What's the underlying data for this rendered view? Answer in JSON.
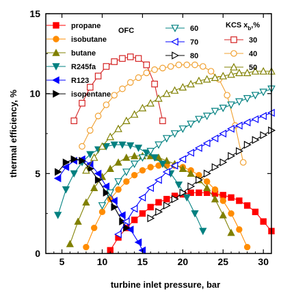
{
  "chart_data": {
    "type": "line",
    "xlabel": "turbine inlet pressure, bar",
    "ylabel": "thermal efficiency, %",
    "xlim": [
      3,
      31
    ],
    "ylim": [
      0,
      15
    ],
    "xticks": [
      5,
      10,
      15,
      20,
      25,
      30
    ],
    "yticks": [
      0,
      5,
      10,
      15
    ],
    "grid": false,
    "annotations": {
      "ofc": "OFC",
      "kcs_prefix": "KCS x",
      "kcs_sub": "b",
      "kcs_suffix": ",%"
    },
    "series": [
      {
        "name": "propane",
        "group": "OFC",
        "color": "#ff0000",
        "marker": "square-filled",
        "x": [
          11.0,
          12.0,
          13.0,
          14.0,
          15.0,
          16.0,
          17.0,
          18.0,
          19.0,
          20.0,
          21.0,
          22.0,
          23.0,
          24.0,
          25.0,
          26.0,
          27.0,
          28.0,
          29.0,
          30.0,
          31.0
        ],
        "y": [
          0.2,
          1.0,
          1.6,
          2.1,
          2.5,
          2.9,
          3.2,
          3.4,
          3.6,
          3.7,
          3.8,
          3.8,
          3.8,
          3.75,
          3.65,
          3.5,
          3.3,
          3.0,
          2.6,
          2.0,
          1.4
        ]
      },
      {
        "name": "isobutane",
        "group": "OFC",
        "color": "#ff8c00",
        "marker": "circle-filled",
        "x": [
          8.0,
          9.0,
          10.0,
          11.0,
          12.0,
          13.0,
          14.0,
          15.0,
          16.0,
          17.0,
          18.0,
          19.0,
          20.0,
          21.0,
          22.0,
          23.0,
          24.0,
          25.0,
          26.0,
          27.0,
          28.0
        ],
        "y": [
          0.4,
          1.6,
          2.6,
          3.4,
          4.0,
          4.5,
          4.9,
          5.2,
          5.4,
          5.5,
          5.5,
          5.5,
          5.4,
          5.2,
          4.9,
          4.5,
          4.0,
          3.3,
          2.5,
          1.5,
          0.4
        ]
      },
      {
        "name": "butane",
        "group": "OFC",
        "color": "#808000",
        "marker": "triangle-up-filled",
        "x": [
          6.0,
          7.0,
          8.0,
          9.0,
          10.0,
          11.0,
          12.0,
          13.0,
          14.0,
          15.0,
          16.0,
          17.0,
          18.0,
          19.0,
          20.0,
          21.0,
          22.0,
          23.0,
          24.0,
          25.0,
          26.0
        ],
        "y": [
          0.6,
          2.0,
          3.2,
          4.1,
          4.8,
          5.3,
          5.7,
          6.0,
          6.1,
          6.1,
          6.1,
          6.0,
          5.8,
          5.6,
          5.3,
          5.0,
          4.6,
          4.1,
          3.4,
          2.4,
          1.3
        ]
      },
      {
        "name": "R245fa",
        "group": "OFC",
        "color": "#008080",
        "marker": "triangle-down-filled",
        "x": [
          4.5,
          5.5,
          6.5,
          7.5,
          8.5,
          9.5,
          10.5,
          11.5,
          12.5,
          13.5,
          14.5,
          15.5,
          16.5,
          17.5,
          18.5,
          19.5,
          20.5,
          21.5,
          22.5
        ],
        "y": [
          2.4,
          4.0,
          5.0,
          5.7,
          6.2,
          6.5,
          6.7,
          6.8,
          6.8,
          6.75,
          6.6,
          6.3,
          6.0,
          5.6,
          5.0,
          4.3,
          3.5,
          2.5,
          1.4
        ]
      },
      {
        "name": "R123",
        "group": "OFC",
        "color": "#0000ff",
        "marker": "triangle-left-filled",
        "x": [
          4.5,
          5.5,
          6.5,
          7.5,
          8.5,
          9.5,
          10.5,
          11.5,
          12.5,
          13.5,
          14.5,
          15.0
        ],
        "y": [
          4.7,
          5.4,
          5.8,
          5.9,
          5.6,
          5.0,
          4.2,
          3.3,
          2.4,
          1.5,
          0.7,
          0.2
        ]
      },
      {
        "name": "isopentane",
        "group": "OFC",
        "color": "#000000",
        "marker": "triangle-right-filled",
        "x": [
          4.5,
          5.5,
          6.5,
          7.5,
          8.5,
          9.5,
          10.5,
          11.5,
          12.5,
          13.0
        ],
        "y": [
          5.1,
          5.7,
          5.9,
          5.8,
          5.3,
          4.6,
          3.8,
          2.9,
          2.0,
          1.6
        ]
      },
      {
        "name": "30",
        "group": "KCS",
        "color": "#d42020",
        "marker": "square-open",
        "x": [
          6.5,
          7.5,
          8.5,
          9.5,
          10.5,
          11.5,
          12.5,
          13.5,
          14.5,
          15.5,
          16.5,
          17.5
        ],
        "y": [
          8.3,
          9.4,
          10.4,
          11.1,
          11.7,
          12.0,
          12.2,
          12.3,
          12.2,
          11.8,
          10.6,
          8.3
        ]
      },
      {
        "name": "40",
        "group": "KCS",
        "color": "#f0a030",
        "marker": "circle-open",
        "x": [
          7.5,
          8.5,
          9.5,
          10.5,
          11.5,
          12.5,
          13.5,
          14.5,
          15.5,
          16.5,
          17.5,
          18.5,
          19.5,
          20.5,
          21.5,
          22.5,
          23.5,
          24.5,
          25.5,
          26.5,
          27.5
        ],
        "y": [
          6.7,
          7.7,
          8.6,
          9.3,
          9.9,
          10.3,
          10.7,
          11.0,
          11.3,
          11.5,
          11.6,
          11.7,
          11.8,
          11.8,
          11.8,
          11.7,
          11.4,
          10.9,
          9.9,
          8.0,
          5.7
        ]
      },
      {
        "name": "50",
        "group": "KCS",
        "color": "#808000",
        "marker": "triangle-up-open",
        "x": [
          8.0,
          9.0,
          10.0,
          11.0,
          12.0,
          13.0,
          14.0,
          15.0,
          16.0,
          17.0,
          18.0,
          19.0,
          20.0,
          21.0,
          22.0,
          23.0,
          24.0,
          25.0,
          26.0,
          27.0,
          28.0,
          29.0,
          30.0,
          31.0
        ],
        "y": [
          5.2,
          6.0,
          6.7,
          7.3,
          7.8,
          8.3,
          8.7,
          9.1,
          9.4,
          9.7,
          10.0,
          10.2,
          10.4,
          10.6,
          10.8,
          10.9,
          11.0,
          11.1,
          11.2,
          11.3,
          11.3,
          11.4,
          11.4,
          11.4
        ]
      },
      {
        "name": "60",
        "group": "KCS",
        "color": "#008080",
        "marker": "triangle-down-open",
        "x": [
          10.0,
          11.0,
          12.0,
          13.0,
          14.0,
          15.0,
          16.0,
          17.0,
          18.0,
          19.0,
          20.0,
          21.0,
          22.0,
          23.0,
          24.0,
          25.0,
          26.0,
          27.0,
          28.0,
          29.0,
          30.0,
          31.0
        ],
        "y": [
          3.0,
          3.8,
          4.5,
          5.1,
          5.6,
          6.0,
          6.4,
          6.8,
          7.2,
          7.5,
          7.8,
          8.1,
          8.4,
          8.6,
          8.9,
          9.1,
          9.3,
          9.5,
          9.7,
          9.9,
          10.1,
          10.3
        ]
      },
      {
        "name": "70",
        "group": "KCS",
        "color": "#0000ff",
        "marker": "triangle-left-open",
        "x": [
          12.0,
          13.0,
          14.0,
          15.0,
          16.0,
          17.0,
          18.0,
          19.0,
          20.0,
          21.0,
          22.0,
          23.0,
          24.0,
          25.0,
          26.0,
          27.0,
          28.0,
          29.0,
          30.0,
          31.0
        ],
        "y": [
          1.2,
          2.0,
          2.8,
          3.5,
          4.1,
          4.6,
          5.1,
          5.5,
          5.9,
          6.3,
          6.6,
          6.9,
          7.2,
          7.5,
          7.8,
          8.0,
          8.2,
          8.4,
          8.6,
          8.8
        ]
      },
      {
        "name": "80",
        "group": "KCS",
        "color": "#000000",
        "marker": "triangle-right-open",
        "x": [
          16.0,
          17.0,
          18.0,
          19.0,
          20.0,
          21.0,
          22.0,
          23.0,
          24.0,
          25.0,
          26.0,
          27.0,
          28.0,
          29.0,
          30.0,
          31.0
        ],
        "y": [
          2.2,
          2.6,
          3.0,
          3.4,
          3.8,
          4.2,
          4.6,
          5.0,
          5.4,
          5.7,
          6.1,
          6.4,
          6.8,
          7.1,
          7.4,
          7.7
        ]
      }
    ]
  }
}
